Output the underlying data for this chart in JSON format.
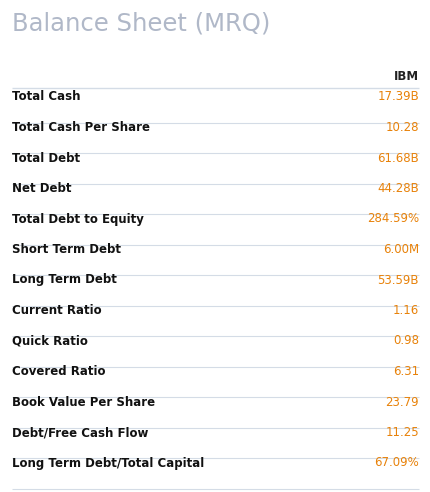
{
  "title": "Balance Sheet (MRQ)",
  "title_color": "#b0b8c8",
  "column_header": "IBM",
  "column_header_color": "#222222",
  "rows": [
    {
      "label": "Total Cash",
      "value": "17.39B"
    },
    {
      "label": "Total Cash Per Share",
      "value": "10.28"
    },
    {
      "label": "Total Debt",
      "value": "61.68B"
    },
    {
      "label": "Net Debt",
      "value": "44.28B"
    },
    {
      "label": "Total Debt to Equity",
      "value": "284.59%"
    },
    {
      "label": "Short Term Debt",
      "value": "6.00M"
    },
    {
      "label": "Long Term Debt",
      "value": "53.59B"
    },
    {
      "label": "Current Ratio",
      "value": "1.16"
    },
    {
      "label": "Quick Ratio",
      "value": "0.98"
    },
    {
      "label": "Covered Ratio",
      "value": "6.31"
    },
    {
      "label": "Book Value Per Share",
      "value": "23.79"
    },
    {
      "label": "Debt/Free Cash Flow",
      "value": "11.25"
    },
    {
      "label": "Long Term Debt/Total Capital",
      "value": "67.09%"
    }
  ],
  "label_color": "#111111",
  "value_color": "#e8820a",
  "line_color": "#d4dce6",
  "bg_color": "#ffffff",
  "label_fontsize": 8.5,
  "value_fontsize": 8.5,
  "header_fontsize": 8.5,
  "title_fontsize": 17.5
}
